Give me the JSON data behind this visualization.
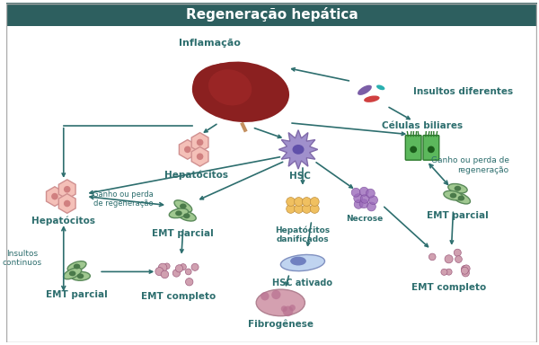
{
  "title": "Regeneração hepática",
  "title_bg": "#2d5f5f",
  "title_color": "#ffffff",
  "arrow_color": "#2d6e6e",
  "label_color": "#2d6e6e",
  "labels": {
    "inflamacao": "Inflamação",
    "insultos_diferentes": "Insultos diferentes",
    "celulas_biliares": "Células biliares",
    "hepatocitos_top": "Hepatócitos",
    "hsc": "HSC",
    "ganho_perda_top": "Ganho ou perda\nde regeneração",
    "hepatocitos_mid": "Hepatócitos",
    "emt_parcial_mid": "EMT parcial",
    "hepatocitos_danificados": "Hepatócitos\ndanificados",
    "necrose": "Necrose",
    "hsc_ativado": "HSC ativado",
    "insultos_continuos": "Insultos\ncontinuos",
    "emt_parcial_bot": "EMT parcial",
    "emt_completo_mid": "EMT completo",
    "fibrogênese": "Fibrogênese",
    "emt_parcial_right": "EMT parcial",
    "emt_completo_right": "EMT completo",
    "ganho_perda_right": "Ganho ou perda de\nregeneração"
  },
  "colors": {
    "liver": "#8b2020",
    "liver_light": "#c0392b",
    "hepatocyte_fill": "#f4b8b8",
    "hepatocyte_border": "#e07070",
    "hsc_fill": "#9b8ec4",
    "hsc_border": "#7b6ea4",
    "bile_cell_fill": "#4caf50",
    "bile_cell_border": "#2d7a2d",
    "emt_cell_fill": "#a8c8a0",
    "emt_cell_border": "#5a8a5a",
    "damaged_fill": "#f0c060",
    "necrosis_fill": "#9b6bbb",
    "hsc_activated_fill": "#c8d8f0",
    "fibrosis_fill": "#d4a0b0",
    "pill_purple": "#7b5ea7",
    "pill_teal": "#2ab0b0",
    "pill_red": "#d04040",
    "bg": "#ffffff"
  }
}
